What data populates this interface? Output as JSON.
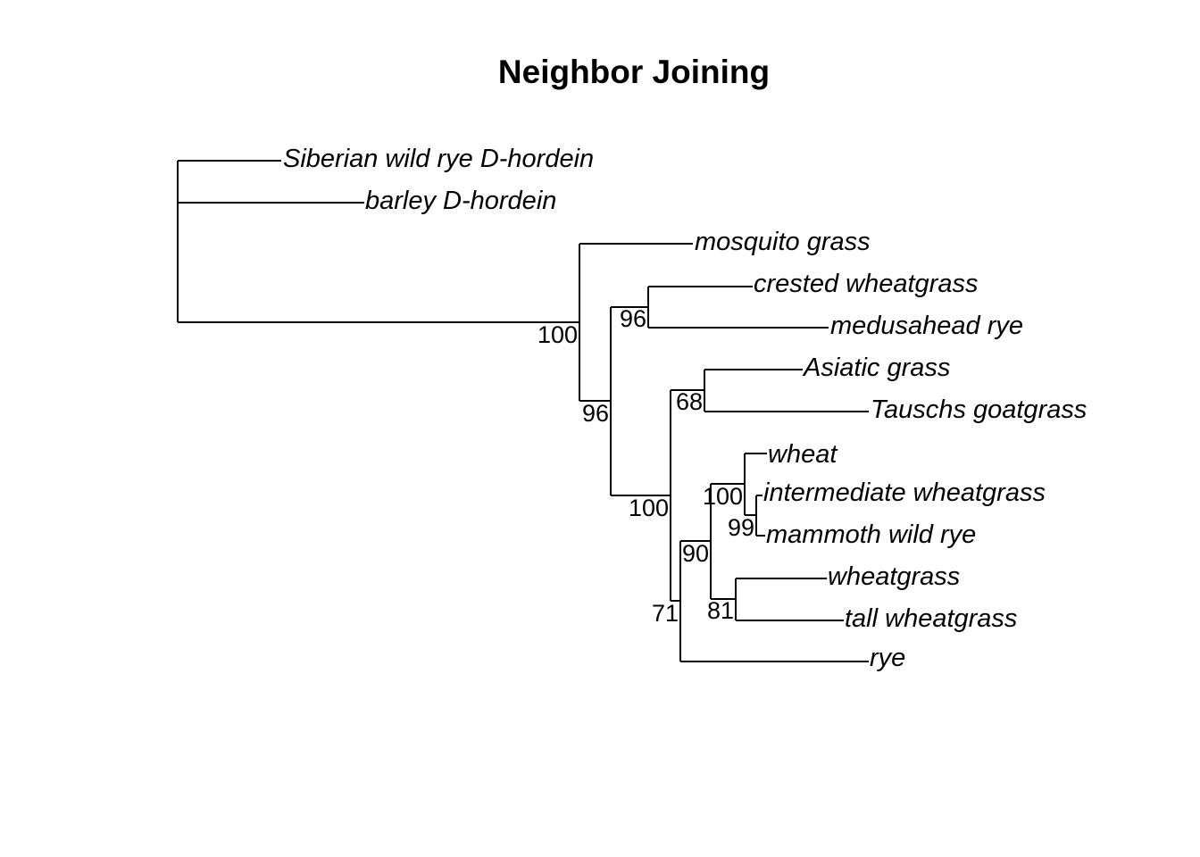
{
  "title": "Neighbor Joining",
  "line_color": "#000000",
  "background_color": "#ffffff",
  "tips": [
    "Siberian wild rye D-hordein",
    "barley D-hordein",
    "mosquito grass",
    "crested wheatgrass",
    "medusahead rye",
    "Asiatic grass",
    "Tauschs goatgrass",
    "wheat",
    "intermediate wheatgrass",
    "mammoth wild rye",
    "wheatgrass",
    "tall wheatgrass",
    "rye"
  ],
  "support_values": {
    "root_clade": "100",
    "crested_medusahead": "96",
    "core_clade": "96",
    "inner_clade": "100",
    "asiatic_tauschs": "68",
    "wheat_group": "100",
    "intermediate_mammoth": "99",
    "wheat_wheatgrass": "90",
    "wheatgrass_tall": "81",
    "rye_clade": "71"
  }
}
